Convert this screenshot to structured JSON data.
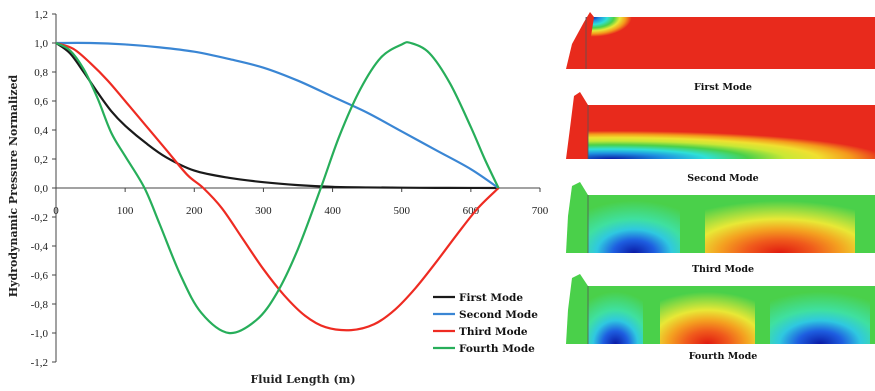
{
  "chart_data": {
    "type": "line",
    "xlabel": "Fluid Length (m)",
    "ylabel": "Hydrodynamic Pressure Normalized",
    "xlim": [
      0,
      700
    ],
    "ylim": [
      -1.2,
      1.2
    ],
    "x_ticks": [
      "0",
      "100",
      "200",
      "300",
      "400",
      "500",
      "600",
      "700"
    ],
    "y_ticks": [
      "1,2",
      "1,0",
      "0,8",
      "0,6",
      "0,4",
      "0,2",
      "0,0",
      "-0,2",
      "-0,4",
      "-0,6",
      "-0,8",
      "-1,0",
      "-1,2"
    ],
    "grid": false,
    "legend_position": "bottom-right",
    "series": [
      {
        "name": "First Mode",
        "color": "#1a1a1a",
        "x": [
          0,
          20,
          40,
          60,
          80,
          100,
          130,
          160,
          200,
          250,
          300,
          350,
          400,
          450,
          500,
          550,
          600,
          640
        ],
        "y": [
          1.0,
          0.93,
          0.8,
          0.66,
          0.53,
          0.43,
          0.31,
          0.21,
          0.12,
          0.07,
          0.04,
          0.02,
          0.008,
          0.004,
          0.002,
          0.001,
          0.0005,
          0.0
        ]
      },
      {
        "name": "Second Mode",
        "color": "#3a86d4",
        "x": [
          0,
          50,
          100,
          150,
          200,
          250,
          300,
          350,
          400,
          450,
          500,
          550,
          600,
          640
        ],
        "y": [
          1.0,
          1.0,
          0.99,
          0.97,
          0.94,
          0.89,
          0.83,
          0.74,
          0.63,
          0.52,
          0.39,
          0.26,
          0.13,
          0.0
        ]
      },
      {
        "name": "Third Mode",
        "color": "#ee2b22",
        "x": [
          0,
          25,
          50,
          75,
          100,
          130,
          160,
          190,
          213,
          240,
          270,
          300,
          330,
          360,
          390,
          427,
          460,
          490,
          520,
          550,
          580,
          610,
          640
        ],
        "y": [
          1.0,
          0.96,
          0.86,
          0.74,
          0.6,
          0.43,
          0.26,
          0.09,
          0.0,
          -0.14,
          -0.35,
          -0.56,
          -0.74,
          -0.88,
          -0.96,
          -0.98,
          -0.94,
          -0.84,
          -0.69,
          -0.51,
          -0.32,
          -0.14,
          0.0
        ]
      },
      {
        "name": "Fourth Mode",
        "color": "#27ae5a",
        "x": [
          0,
          20,
          40,
          60,
          80,
          100,
          128,
          150,
          180,
          210,
          250,
          290,
          320,
          350,
          383,
          410,
          440,
          470,
          500,
          513,
          540,
          570,
          600,
          620,
          640
        ],
        "y": [
          1.0,
          0.95,
          0.82,
          0.62,
          0.38,
          0.22,
          0.0,
          -0.25,
          -0.6,
          -0.86,
          -1.0,
          -0.91,
          -0.72,
          -0.42,
          0.0,
          0.36,
          0.68,
          0.9,
          0.99,
          1.0,
          0.93,
          0.72,
          0.42,
          0.2,
          0.0
        ]
      }
    ]
  },
  "mode_panels": [
    {
      "caption": "First Mode"
    },
    {
      "caption": "Second Mode"
    },
    {
      "caption": "Third Mode"
    },
    {
      "caption": "Fourth Mode"
    }
  ]
}
